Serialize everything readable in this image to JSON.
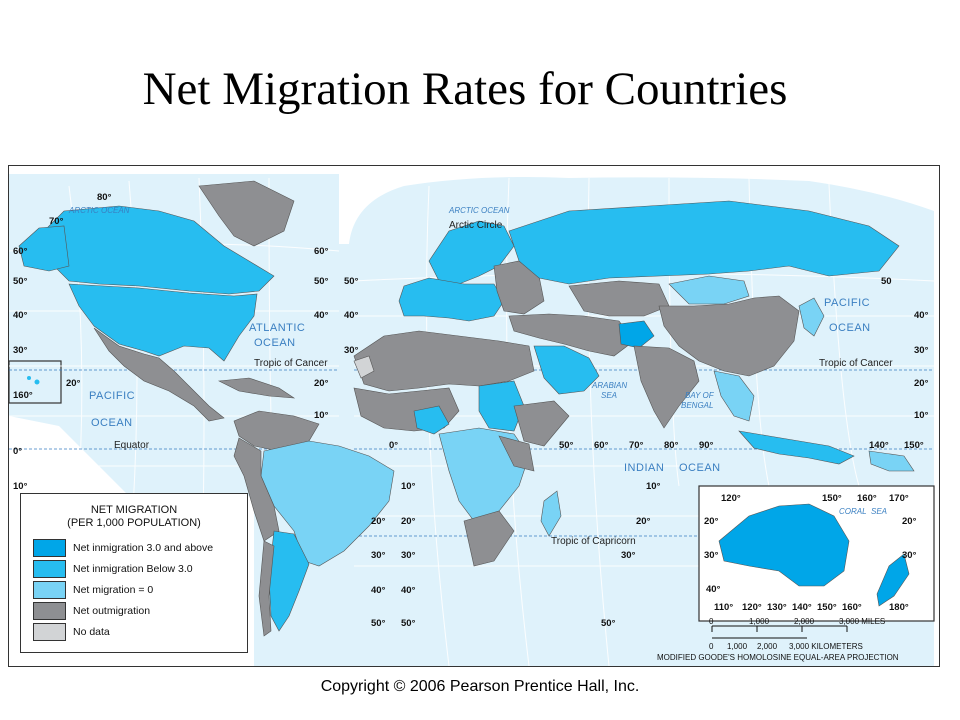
{
  "title": "Net Migration Rates for Countries",
  "colors": {
    "ocean": "#dff2fb",
    "above3": "#00a6e8",
    "below3": "#27bdf0",
    "zero": "#79d3f5",
    "outmigration": "#8e8f92",
    "nodata": "#d2d4d6",
    "grid": "#ffffff"
  },
  "legend": {
    "title_line1": "NET MIGRATION",
    "title_line2": "(PER 1,000 POPULATION)",
    "items": [
      {
        "label": "Net inmigration 3.0 and above",
        "color_key": "above3"
      },
      {
        "label": "Net inmigration Below 3.0",
        "color_key": "below3"
      },
      {
        "label": "Net migration = 0",
        "color_key": "zero"
      },
      {
        "label": "Net outmigration",
        "color_key": "outmigration"
      },
      {
        "label": "No data",
        "color_key": "nodata"
      }
    ]
  },
  "labels": {
    "arctic_ocean_1": "ARCTIC OCEAN",
    "arctic_ocean_2": "ARCTIC OCEAN",
    "arctic_circle": "Arctic Circle",
    "atlantic_1": "ATLANTIC",
    "atlantic_2": "OCEAN",
    "pacific_w_1": "PACIFIC",
    "pacific_w_2": "OCEAN",
    "pacific_e_1": "PACIFIC",
    "pacific_e_2": "OCEAN",
    "indian_1": "INDIAN",
    "indian_2": "OCEAN",
    "arabian_1": "ARABIAN",
    "arabian_2": "SEA",
    "bengal_1": "BAY OF",
    "bengal_2": "BENGAL",
    "coral": "CORAL",
    "sea": "SEA",
    "tropic_cancer_w": "Tropic of Cancer",
    "tropic_cancer_e": "Tropic of Cancer",
    "equator": "Equator",
    "tropic_capricorn": "Tropic of Capricorn"
  },
  "degrees": {
    "n80": "80°",
    "n70": "70°",
    "n60_l": "60°",
    "n60_r": "60°",
    "n50_l": "50°",
    "n50_r": "50°",
    "n50_m": "50°",
    "n50_e": "50",
    "n40_l": "40°",
    "n40_r": "40°",
    "n40_m": "40°",
    "n40_e": "40°",
    "n30_l": "30°",
    "n30_m": "30°",
    "n30_e": "30°",
    "n20_l": "20°",
    "n20_r": "20°",
    "n20_e": "20°",
    "n10_r": "10°",
    "n10_e": "10°",
    "e160w": "160°",
    "eq0": "0°",
    "eq0_l": "0°",
    "s10_l": "10°",
    "s10_m": "10°",
    "s10_e": "10°",
    "s20_m": "20°",
    "s20_e": "20°",
    "s20_r": "20°",
    "s30_m": "30°",
    "s30_e": "30°",
    "s30_r": "30°",
    "s40_m": "40°",
    "s40_e": "40°",
    "s50_m": "50°",
    "s50_e": "50°",
    "lon50": "50°",
    "lon60": "60°",
    "lon70": "70°",
    "lon80": "80°",
    "lon90": "90°",
    "lon140": "140°",
    "lon150": "150°",
    "au120": "120°",
    "au150": "150°",
    "au160": "160°",
    "au170": "170°",
    "au20_l": "20°",
    "au20_r": "20°",
    "au30_l": "30°",
    "au30_r": "30°",
    "au40_l": "40°",
    "au110": "110°",
    "au120b": "120°",
    "au130": "130°",
    "au140": "140°",
    "au150b": "150°",
    "au160b": "160°",
    "au180": "180°"
  },
  "scale": {
    "miles_ticks": [
      "0",
      "1,000",
      "2,000",
      "3,000 MILES"
    ],
    "km_ticks": [
      "0",
      "1,000",
      "2,000",
      "3,000 KILOMETERS"
    ]
  },
  "projection_note": "MODIFIED GOODE'S HOMOLOSINE EQUAL-AREA PROJECTION",
  "copyright": "Copyright © 2006 Pearson Prentice Hall, Inc."
}
